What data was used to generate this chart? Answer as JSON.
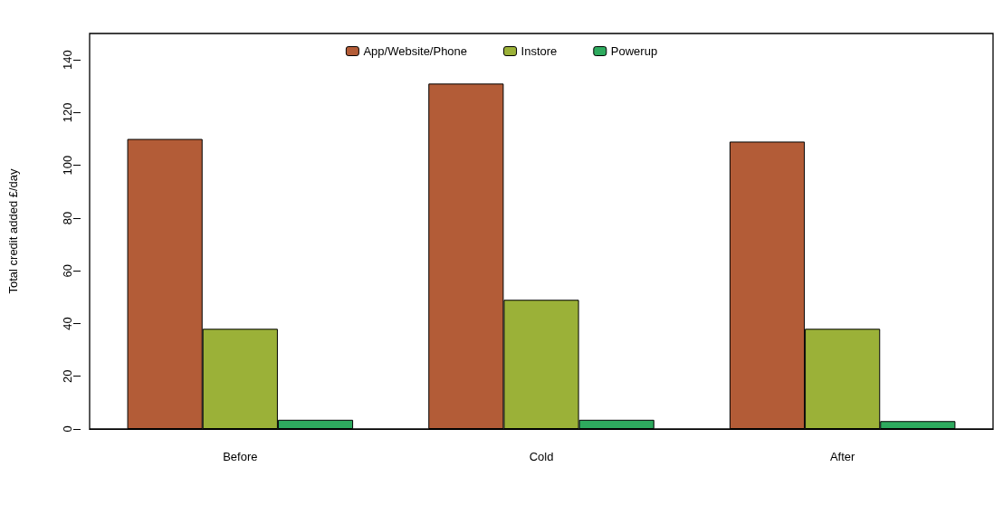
{
  "chart_data": {
    "type": "bar",
    "ylabel": "Total credit added £/day",
    "categories": [
      "Before",
      "Cold",
      "After"
    ],
    "series": [
      {
        "name": "App/Website/Phone",
        "color": "#b35c37",
        "values": [
          110,
          131,
          109
        ]
      },
      {
        "name": "Instore",
        "color": "#9bb138",
        "values": [
          38,
          49,
          38
        ]
      },
      {
        "name": "Powerup",
        "color": "#2eaa5e",
        "values": [
          3.5,
          3.5,
          3
        ]
      }
    ],
    "ylim": [
      0,
      150
    ],
    "yticks": [
      0,
      20,
      40,
      60,
      80,
      100,
      120,
      140
    ],
    "grid": false,
    "legend": "top"
  }
}
